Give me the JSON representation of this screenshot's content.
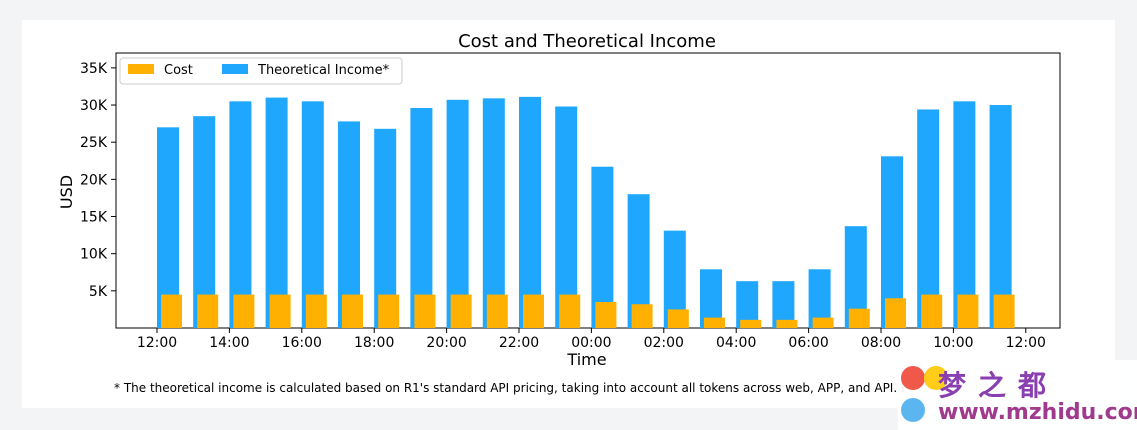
{
  "chart_data": {
    "type": "bar",
    "title": "Cost and Theoretical Income",
    "xlabel": "Time",
    "ylabel": "USD",
    "ylim": [
      0,
      37000
    ],
    "yticks": [
      {
        "value": 5000,
        "label": "5K"
      },
      {
        "value": 10000,
        "label": "10K"
      },
      {
        "value": 15000,
        "label": "15K"
      },
      {
        "value": 20000,
        "label": "20K"
      },
      {
        "value": 25000,
        "label": "25K"
      },
      {
        "value": 30000,
        "label": "30K"
      },
      {
        "value": 35000,
        "label": "35K"
      }
    ],
    "xticks": [
      "12:00",
      "14:00",
      "16:00",
      "18:00",
      "20:00",
      "22:00",
      "00:00",
      "02:00",
      "04:00",
      "06:00",
      "08:00",
      "10:00",
      "12:00"
    ],
    "legend_position": "top-left",
    "grid": false,
    "series": [
      {
        "name": "Cost",
        "color": "#ffb000",
        "values": [
          4500,
          4500,
          4500,
          4500,
          4500,
          4500,
          4500,
          4500,
          4500,
          4500,
          4500,
          4500,
          3500,
          3200,
          2500,
          1400,
          1100,
          1100,
          1400,
          2600,
          4000,
          4500,
          4500,
          4500
        ]
      },
      {
        "name": "Theoretical Income*",
        "color": "#1ea7fd",
        "values": [
          27000,
          28500,
          30500,
          31000,
          30500,
          27800,
          26800,
          29600,
          30700,
          30900,
          31100,
          29800,
          21700,
          18000,
          13100,
          7900,
          6300,
          6300,
          7900,
          13700,
          23100,
          29400,
          30500,
          30000
        ]
      }
    ]
  },
  "footnote": "* The theoretical income is calculated based on R1's standard API pricing, taking into account all tokens across web, APP, and API. I",
  "watermark": {
    "chars": "梦之都",
    "url": "www.mzhidu.com"
  }
}
